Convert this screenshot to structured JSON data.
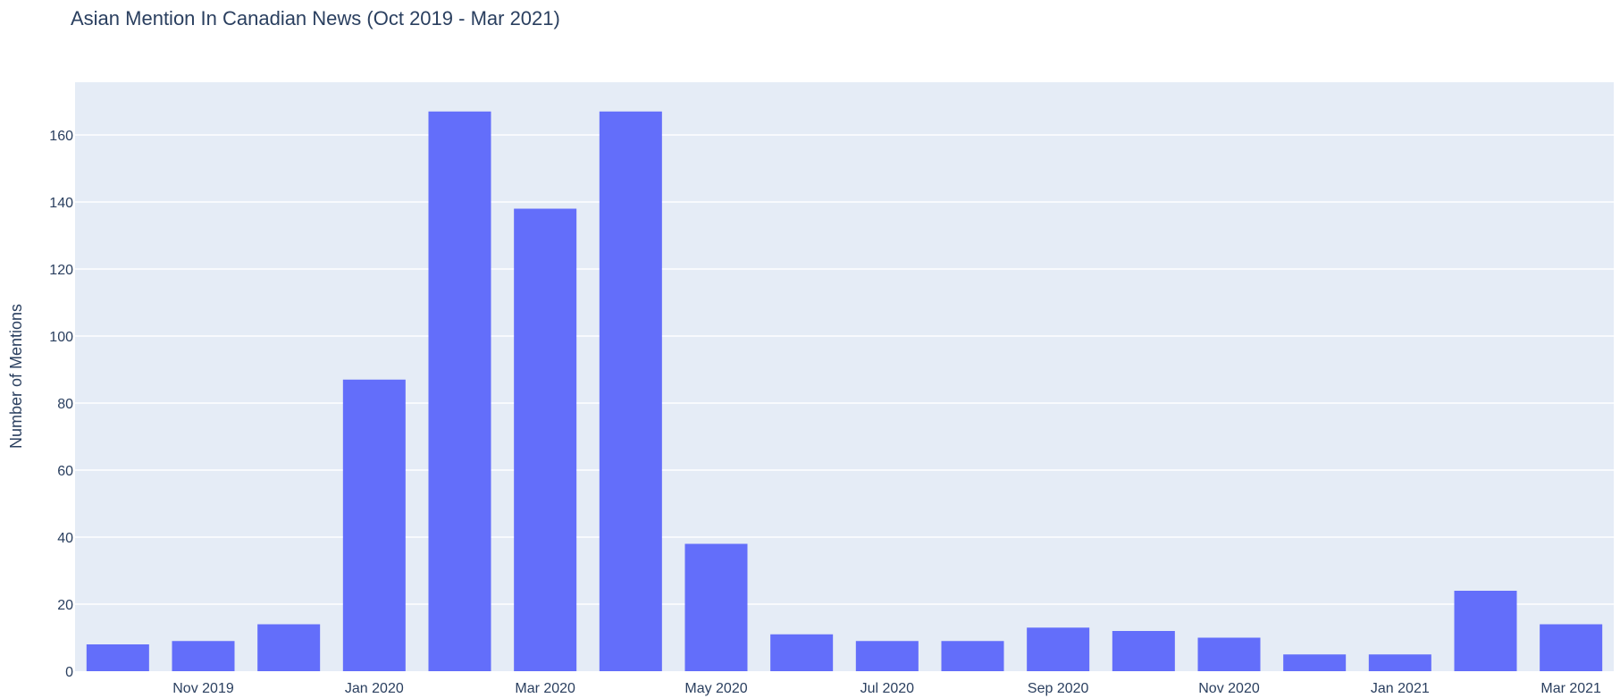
{
  "chart_data": {
    "type": "bar",
    "title": "Asian Mention In Canadian News (Oct 2019 - Mar 2021)",
    "xlabel": "",
    "ylabel": "Number of Mentions",
    "x": [
      "2019-10",
      "2019-11",
      "2019-12",
      "2020-01",
      "2020-02",
      "2020-03",
      "2020-04",
      "2020-05",
      "2020-06",
      "2020-07",
      "2020-08",
      "2020-09",
      "2020-10",
      "2020-11",
      "2020-12",
      "2021-01",
      "2021-02",
      "2021-03"
    ],
    "values": [
      8,
      9,
      14,
      87,
      167,
      138,
      167,
      38,
      11,
      9,
      9,
      13,
      12,
      10,
      5,
      5,
      24,
      14
    ],
    "x_tick_labels": [
      {
        "at": "2019-11",
        "label": "Nov 2019"
      },
      {
        "at": "2020-01",
        "label": "Jan 2020"
      },
      {
        "at": "2020-03",
        "label": "Mar 2020"
      },
      {
        "at": "2020-05",
        "label": "May 2020"
      },
      {
        "at": "2020-07",
        "label": "Jul 2020"
      },
      {
        "at": "2020-09",
        "label": "Sep 2020"
      },
      {
        "at": "2020-11",
        "label": "Nov 2020"
      },
      {
        "at": "2021-01",
        "label": "Jan 2021"
      },
      {
        "at": "2021-03",
        "label": "Mar 2021"
      }
    ],
    "y_ticks": [
      0,
      20,
      40,
      60,
      80,
      100,
      120,
      140,
      160
    ],
    "ylim": [
      0,
      175
    ],
    "grid": true,
    "colors": {
      "bar": "#636efa",
      "plot_bg": "#e5ecf6",
      "grid": "#ffffff",
      "text": "#2a3f5f"
    }
  }
}
